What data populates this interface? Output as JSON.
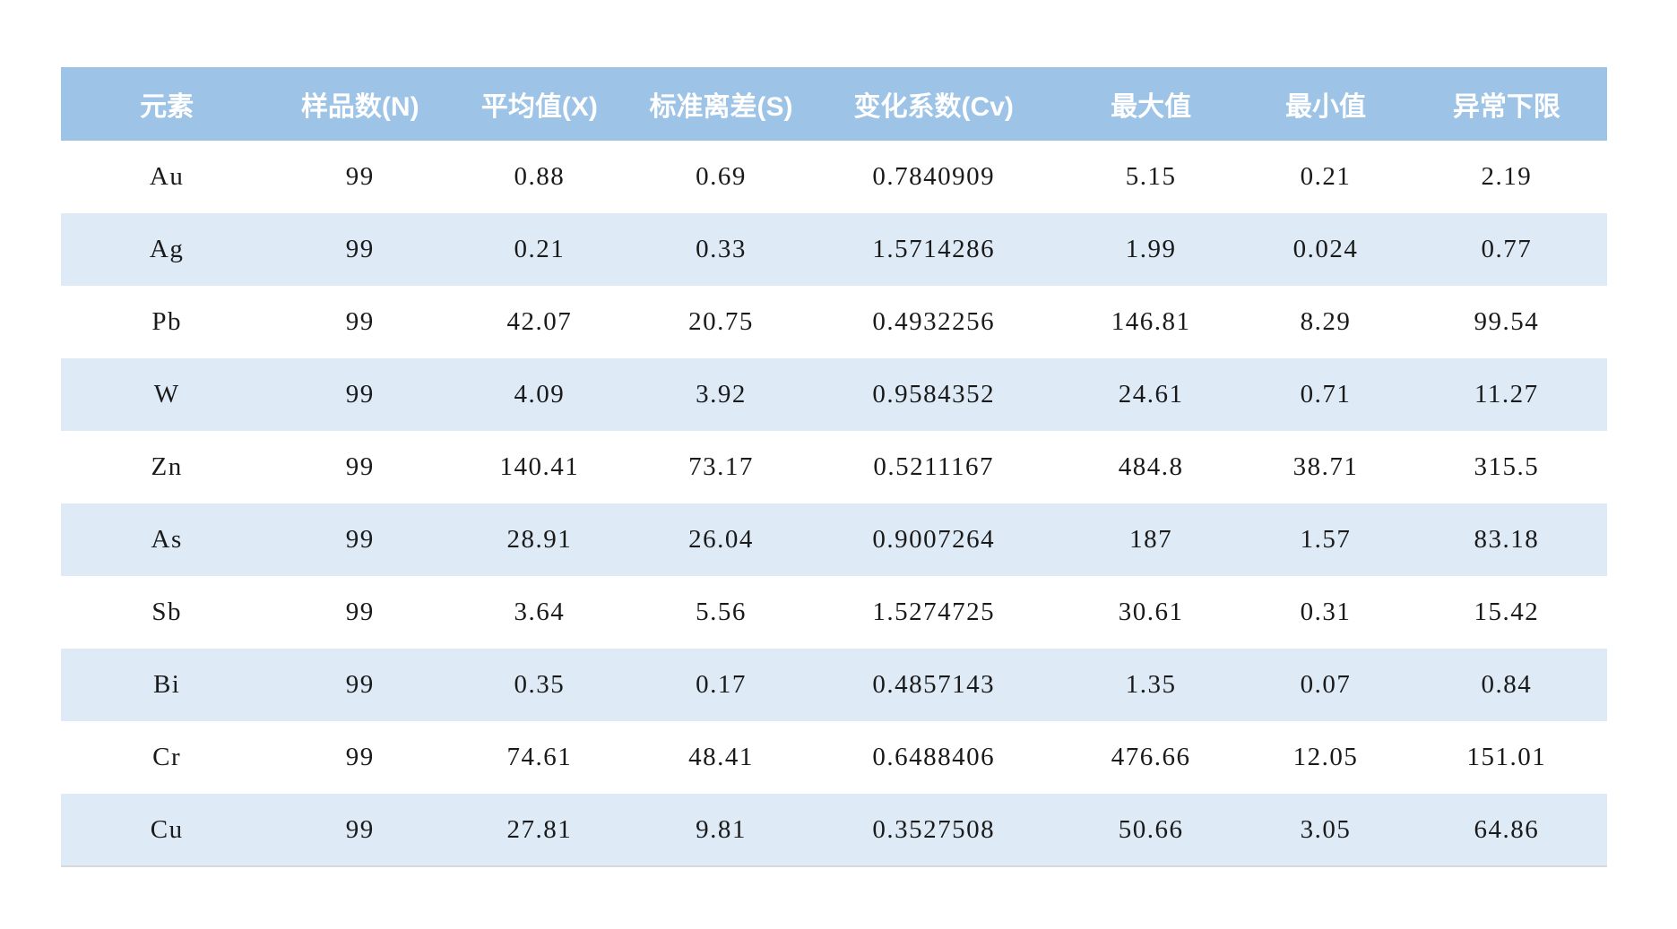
{
  "colors": {
    "header_bg": "#9dc3e6",
    "header_text": "#ffffff",
    "stripe_bg": "#deeaf6",
    "row_bg": "#ffffff",
    "cell_text": "#1a1a1a"
  },
  "table": {
    "columns": [
      {
        "key": "element",
        "label": "元素"
      },
      {
        "key": "sample_count",
        "label": "样品数(N)"
      },
      {
        "key": "mean",
        "label": "平均值(X)"
      },
      {
        "key": "std_dev",
        "label": "标准离差(S)"
      },
      {
        "key": "cv",
        "label": "变化系数(Cv)"
      },
      {
        "key": "max",
        "label": "最大值"
      },
      {
        "key": "min",
        "label": "最小值"
      },
      {
        "key": "anomaly_threshold",
        "label": "异常下限"
      }
    ],
    "rows": [
      {
        "element": "Au",
        "sample_count": "99",
        "mean": "0.88",
        "std_dev": "0.69",
        "cv": "0.7840909",
        "max": "5.15",
        "min": "0.21",
        "anomaly_threshold": "2.19"
      },
      {
        "element": "Ag",
        "sample_count": "99",
        "mean": "0.21",
        "std_dev": "0.33",
        "cv": "1.5714286",
        "max": "1.99",
        "min": "0.024",
        "anomaly_threshold": "0.77"
      },
      {
        "element": "Pb",
        "sample_count": "99",
        "mean": "42.07",
        "std_dev": "20.75",
        "cv": "0.4932256",
        "max": "146.81",
        "min": "8.29",
        "anomaly_threshold": "99.54"
      },
      {
        "element": "W",
        "sample_count": "99",
        "mean": "4.09",
        "std_dev": "3.92",
        "cv": "0.9584352",
        "max": "24.61",
        "min": "0.71",
        "anomaly_threshold": "11.27"
      },
      {
        "element": "Zn",
        "sample_count": "99",
        "mean": "140.41",
        "std_dev": "73.17",
        "cv": "0.5211167",
        "max": "484.8",
        "min": "38.71",
        "anomaly_threshold": "315.5"
      },
      {
        "element": "As",
        "sample_count": "99",
        "mean": "28.91",
        "std_dev": "26.04",
        "cv": "0.9007264",
        "max": "187",
        "min": "1.57",
        "anomaly_threshold": "83.18"
      },
      {
        "element": "Sb",
        "sample_count": "99",
        "mean": "3.64",
        "std_dev": "5.56",
        "cv": "1.5274725",
        "max": "30.61",
        "min": "0.31",
        "anomaly_threshold": "15.42"
      },
      {
        "element": "Bi",
        "sample_count": "99",
        "mean": "0.35",
        "std_dev": "0.17",
        "cv": "0.4857143",
        "max": "1.35",
        "min": "0.07",
        "anomaly_threshold": "0.84"
      },
      {
        "element": "Cr",
        "sample_count": "99",
        "mean": "74.61",
        "std_dev": "48.41",
        "cv": "0.6488406",
        "max": "476.66",
        "min": "12.05",
        "anomaly_threshold": "151.01"
      },
      {
        "element": "Cu",
        "sample_count": "99",
        "mean": "27.81",
        "std_dev": "9.81",
        "cv": "0.3527508",
        "max": "50.66",
        "min": "3.05",
        "anomaly_threshold": "64.86"
      }
    ]
  },
  "chart_data": {
    "type": "table",
    "title": "",
    "columns": [
      "元素",
      "样品数(N)",
      "平均值(X)",
      "标准离差(S)",
      "变化系数(Cv)",
      "最大值",
      "最小值",
      "异常下限"
    ],
    "rows": [
      [
        "Au",
        99,
        0.88,
        0.69,
        0.7840909,
        5.15,
        0.21,
        2.19
      ],
      [
        "Ag",
        99,
        0.21,
        0.33,
        1.5714286,
        1.99,
        0.024,
        0.77
      ],
      [
        "Pb",
        99,
        42.07,
        20.75,
        0.4932256,
        146.81,
        8.29,
        99.54
      ],
      [
        "W",
        99,
        4.09,
        3.92,
        0.9584352,
        24.61,
        0.71,
        11.27
      ],
      [
        "Zn",
        99,
        140.41,
        73.17,
        0.5211167,
        484.8,
        38.71,
        315.5
      ],
      [
        "As",
        99,
        28.91,
        26.04,
        0.9007264,
        187,
        1.57,
        83.18
      ],
      [
        "Sb",
        99,
        3.64,
        5.56,
        1.5274725,
        30.61,
        0.31,
        15.42
      ],
      [
        "Bi",
        99,
        0.35,
        0.17,
        0.4857143,
        1.35,
        0.07,
        0.84
      ],
      [
        "Cr",
        99,
        74.61,
        48.41,
        0.6488406,
        476.66,
        12.05,
        151.01
      ],
      [
        "Cu",
        99,
        27.81,
        9.81,
        0.3527508,
        50.66,
        3.05,
        64.86
      ]
    ]
  }
}
